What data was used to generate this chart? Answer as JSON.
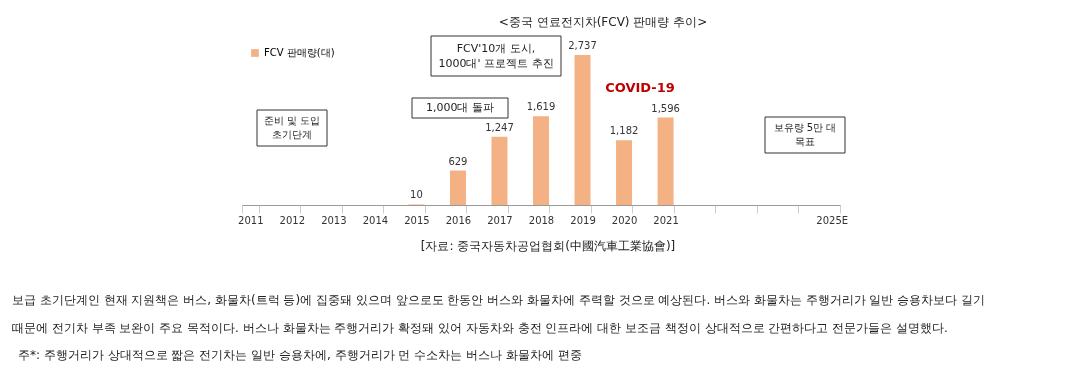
{
  "chart_data": {
    "type": "bar",
    "title": "<중국 연료전지차(FCV) 판매량 추이>",
    "categories": [
      "2011",
      "2012",
      "2013",
      "2014",
      "2015",
      "2016",
      "2017",
      "2018",
      "2019",
      "2020",
      "2021",
      null,
      null,
      null,
      "2025E"
    ],
    "series": [
      {
        "name": "FCV 판매량(대)",
        "color": "#f4b183",
        "values": [
          null,
          null,
          null,
          null,
          10,
          629,
          1247,
          1619,
          2737,
          1182,
          1596,
          null,
          null,
          null,
          null
        ],
        "value_labels": [
          null,
          null,
          null,
          null,
          "10",
          "629",
          "1,247",
          "1,619",
          "2,737",
          "1,182",
          "1,596",
          null,
          null,
          null,
          null
        ]
      }
    ],
    "legend": "top left",
    "grid": false,
    "annotations": [
      "준비 및 도입\n초기단계",
      "1,000대 돌파",
      "FCV'10개 도시,\n1000대' 프로젝트 추진",
      "COVID-19",
      "보유량 5만 대\n목표",
      "[자료: 중국자동차공업협회(中國汽車工業協會)]",
      "보급 초기단계인 현재 지원책은 버스, 화물차(트럭 등)에 집중돼 있으며 앞으로도 한동안 버스와 화물차에 주력할 것으로 예상된다. 버스와 화물차는 주행거리가 일반 승용차보다 길기",
      "때문에 전기차 부족 보완이 주요 목적이다. 버스나 화물차는 주행거리가 확정돼 있어 자동차와 충전 인프라에 대한 보조금 책정이 상대적으로 간편하다고 전문가들은 설명했다.",
      "주*: 주행거리가 상대적으로 짧은 전기차는 일반 승용차에, 주행거리가 먼 수소차는 버스나 화물차에 편중"
    ]
  }
}
